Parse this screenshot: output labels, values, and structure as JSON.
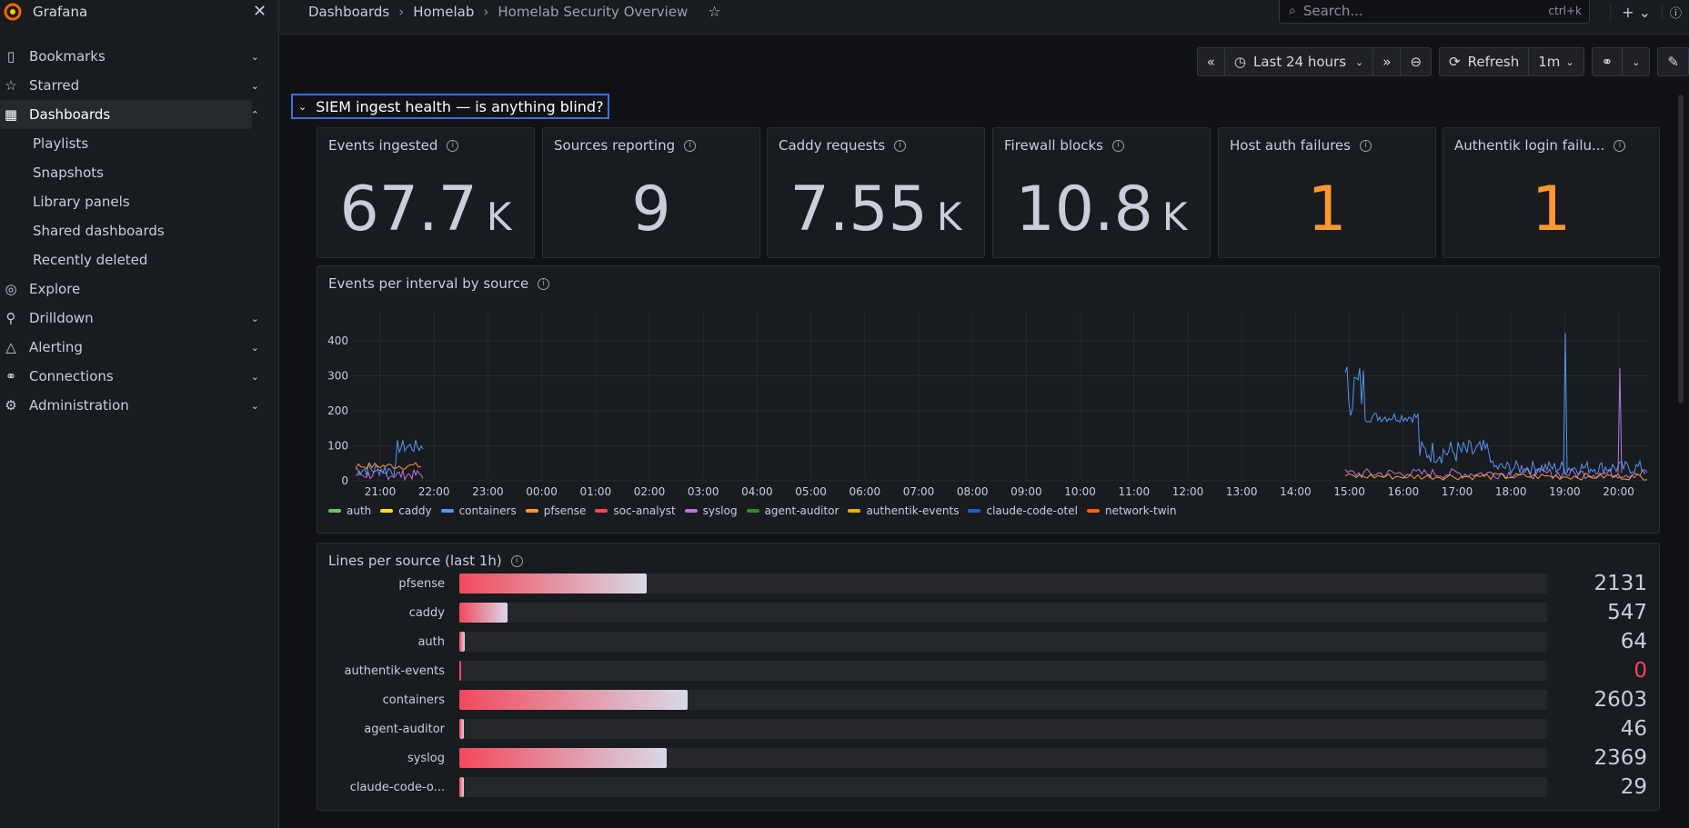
{
  "app": {
    "title": "Grafana"
  },
  "sidebar": {
    "items": [
      {
        "label": "Bookmarks",
        "icon": "bookmark-icon",
        "expandable": true
      },
      {
        "label": "Starred",
        "icon": "star-icon",
        "expandable": true
      },
      {
        "label": "Dashboards",
        "icon": "dashboards-icon",
        "expandable": true,
        "active": true
      },
      {
        "label": "Playlists",
        "sub": true
      },
      {
        "label": "Snapshots",
        "sub": true
      },
      {
        "label": "Library panels",
        "sub": true
      },
      {
        "label": "Shared dashboards",
        "sub": true
      },
      {
        "label": "Recently deleted",
        "sub": true
      },
      {
        "label": "Explore",
        "icon": "compass-icon"
      },
      {
        "label": "Drilldown",
        "icon": "drilldown-icon",
        "expandable": true
      },
      {
        "label": "Alerting",
        "icon": "bell-icon",
        "expandable": true
      },
      {
        "label": "Connections",
        "icon": "link-icon",
        "expandable": true
      },
      {
        "label": "Administration",
        "icon": "gear-icon",
        "expandable": true
      }
    ]
  },
  "breadcrumb": {
    "items": [
      "Dashboards",
      "Homelab",
      "Homelab Security Overview"
    ]
  },
  "search": {
    "placeholder": "Search...",
    "shortcut": "ctrl+k"
  },
  "toolbar": {
    "time_range": "Last 24 hours",
    "refresh_label": "Refresh",
    "refresh_interval": "1m"
  },
  "row": {
    "title": "SIEM ingest health — is anything blind?"
  },
  "stats": [
    {
      "title": "Events ingested",
      "value": "67.7",
      "unit": "K",
      "color": "#ccccdc"
    },
    {
      "title": "Sources reporting",
      "value": "9",
      "unit": "",
      "color": "#ccccdc"
    },
    {
      "title": "Caddy requests",
      "value": "7.55",
      "unit": "K",
      "color": "#ccccdc"
    },
    {
      "title": "Firewall blocks",
      "value": "10.8",
      "unit": "K",
      "color": "#ccccdc"
    },
    {
      "title": "Host auth failures",
      "value": "1",
      "unit": "",
      "color": "#ff9830"
    },
    {
      "title": "Authentik login failu...",
      "value": "1",
      "unit": "",
      "color": "#ff9830"
    }
  ],
  "timeseries": {
    "title": "Events per interval by source",
    "y_ticks": [
      "400",
      "300",
      "200",
      "100",
      "0"
    ],
    "x_ticks": [
      "21:00",
      "22:00",
      "23:00",
      "00:00",
      "01:00",
      "02:00",
      "03:00",
      "04:00",
      "05:00",
      "06:00",
      "07:00",
      "08:00",
      "09:00",
      "10:00",
      "11:00",
      "12:00",
      "13:00",
      "14:00",
      "15:00",
      "16:00",
      "17:00",
      "18:00",
      "19:00",
      "20:00"
    ],
    "legend": [
      {
        "name": "auth",
        "color": "#73bf69"
      },
      {
        "name": "caddy",
        "color": "#fade2a"
      },
      {
        "name": "containers",
        "color": "#5794f2"
      },
      {
        "name": "pfsense",
        "color": "#ff9830"
      },
      {
        "name": "soc-analyst",
        "color": "#f2495c"
      },
      {
        "name": "syslog",
        "color": "#b877d9"
      },
      {
        "name": "agent-auditor",
        "color": "#37872d"
      },
      {
        "name": "authentik-events",
        "color": "#e0b400"
      },
      {
        "name": "claude-code-otel",
        "color": "#1f60c4"
      },
      {
        "name": "network-twin",
        "color": "#fa6400"
      }
    ]
  },
  "chart_data": {
    "type": "bar",
    "title": "Lines per source (last 1h)",
    "categories": [
      "pfsense",
      "caddy",
      "auth",
      "authentik-events",
      "containers",
      "agent-auditor",
      "syslog",
      "claude-code-o..."
    ],
    "values": [
      2131,
      547,
      64,
      0,
      2603,
      46,
      2369,
      29
    ],
    "xlim": [
      0,
      12400
    ]
  }
}
